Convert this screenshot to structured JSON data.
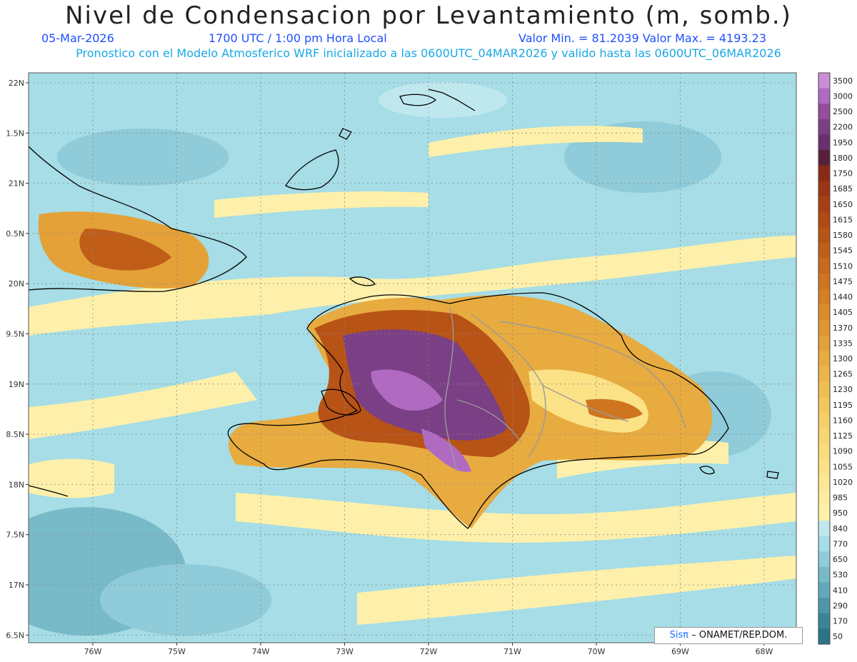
{
  "header": {
    "title": "Nivel de Condensacion por Levantamiento (m, somb.)",
    "date": "05-Mar-2026",
    "time": "1700 UTC / 1:00 pm Hora Local",
    "min_max": "Valor Min. = 81.2039   Valor Max. = 4193.23",
    "forecast": "Pronostico con el Modelo Atmosferico WRF inicializado a las 0600UTC_04MAR2026 y valido hasta las  0600UTC_06MAR2026"
  },
  "axes": {
    "lat_labels": [
      "22N",
      "1.5N",
      "21N",
      "0.5N",
      "20N",
      "9.5N",
      "19N",
      "8.5N",
      "18N",
      "7.5N",
      "17N",
      "6.5N"
    ],
    "lon_labels": [
      "76W",
      "75W",
      "74W",
      "73W",
      "72W",
      "71W",
      "70W",
      "69W",
      "68W"
    ]
  },
  "colorbar": {
    "labels": [
      "3500",
      "3000",
      "2500",
      "2200",
      "1950",
      "1800",
      "1750",
      "1685",
      "1650",
      "1615",
      "1580",
      "1545",
      "1510",
      "1475",
      "1440",
      "1405",
      "1370",
      "1335",
      "1300",
      "1265",
      "1230",
      "1195",
      "1160",
      "1125",
      "1090",
      "1055",
      "1020",
      "985",
      "950",
      "840",
      "770",
      "650",
      "530",
      "410",
      "290",
      "170",
      "50"
    ],
    "colors": [
      "#c98fd6",
      "#b06ac2",
      "#934d9c",
      "#7b3f85",
      "#6a2f6e",
      "#5a1f3a",
      "#8a2a16",
      "#9c3514",
      "#a73f12",
      "#b04914",
      "#b85316",
      "#c05e18",
      "#c8691c",
      "#cf7520",
      "#d58024",
      "#da8b2a",
      "#df9630",
      "#e4a137",
      "#e8ab3f",
      "#ecb548",
      "#efbe52",
      "#f2c75c",
      "#f5cf67",
      "#f7d672",
      "#f9dc7c",
      "#fbe287",
      "#fce793",
      "#fdec9f",
      "#fef0aa",
      "#bfe8ee",
      "#a6dde6",
      "#8fcbd8",
      "#78bac8",
      "#62a8b8",
      "#4e96a8",
      "#3b8498",
      "#2b7488"
    ]
  },
  "credit": {
    "brand": "Sisπ",
    "text": "– ONAMET/REP.DOM."
  }
}
